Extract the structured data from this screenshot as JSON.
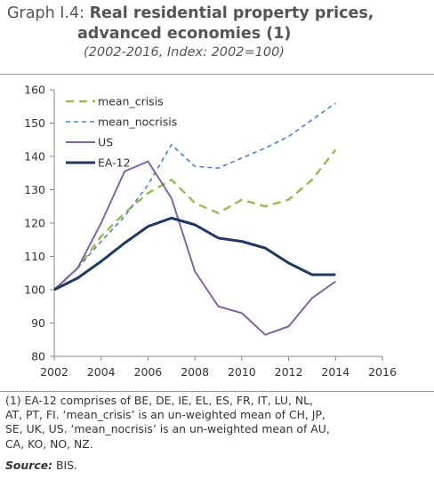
{
  "title": {
    "label": "Graph I.4:",
    "line1": "Real residential property prices,",
    "line2": "advanced economies (1)",
    "subtitle": "(2002-2016, Index: 2002=100)"
  },
  "note": {
    "line1": "(1) EA-12 comprises of BE, DE, IE, EL, ES, FR, IT, LU, NL,",
    "line2": "AT, PT, FI. ‘mean_crisis’ is an un-weighted mean of CH, JP,",
    "line3": "SE, UK, US. ‘mean_nocrisis’ is an un-weighted mean of AU,",
    "line4": "CA, KO, NO, NZ."
  },
  "source": {
    "label": "Source:",
    "text": "BIS."
  },
  "chart_data": {
    "type": "line",
    "xlim": [
      2002,
      2016
    ],
    "ylim": [
      80,
      160
    ],
    "xticks": [
      2002,
      2004,
      2006,
      2008,
      2010,
      2012,
      2014,
      2016
    ],
    "yticks": [
      80,
      90,
      100,
      110,
      120,
      130,
      140,
      150,
      160
    ],
    "x": [
      2002,
      2003,
      2004,
      2005,
      2006,
      2007,
      2008,
      2009,
      2010,
      2011,
      2012,
      2013,
      2014
    ],
    "legend_position": "top-left",
    "grid": false,
    "series": [
      {
        "name": "mean_crisis",
        "color": "#9bbb59",
        "style": "long-dash",
        "values": [
          100,
          106.5,
          116,
          123,
          129,
          133,
          126,
          123,
          127,
          125,
          127,
          133,
          142
        ]
      },
      {
        "name": "mean_nocrisis",
        "color": "#4f81bd",
        "style": "short-dash",
        "values": [
          100,
          106.5,
          114.5,
          122,
          131.5,
          143.5,
          137,
          136.5,
          139.5,
          142.5,
          146,
          151,
          156
        ]
      },
      {
        "name": "US",
        "color": "#8064a2",
        "style": "solid",
        "values": [
          100,
          106.5,
          120,
          135.5,
          138.5,
          127.5,
          105.5,
          95,
          93,
          86.5,
          89,
          97.5,
          102.5
        ]
      },
      {
        "name": "EA-12",
        "color": "#1f3864",
        "style": "solid-thick",
        "values": [
          100,
          103.5,
          108.5,
          114,
          119,
          121.5,
          119.5,
          115.5,
          114.5,
          112.5,
          108,
          104.5,
          104.5
        ]
      }
    ]
  }
}
